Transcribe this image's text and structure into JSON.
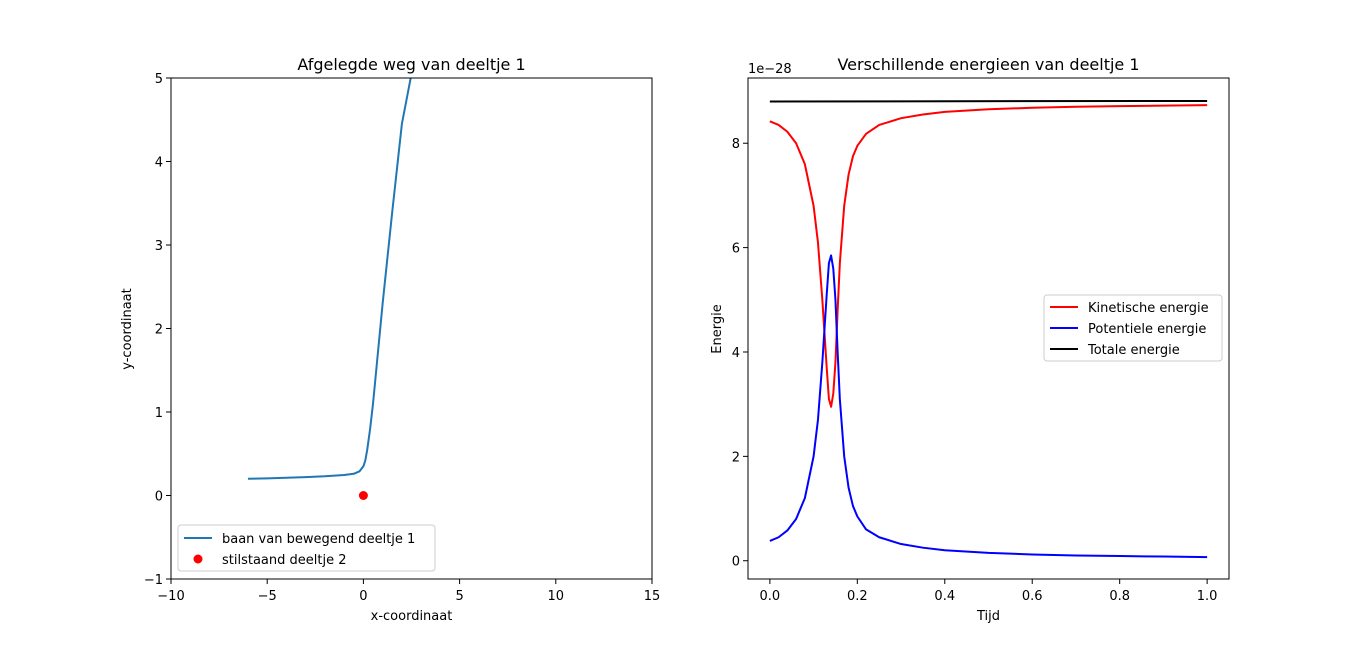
{
  "chart_data": [
    {
      "type": "line",
      "title": "Afgelegde weg van deeltje 1",
      "xlabel": "x-coordinaat",
      "ylabel": "y-coordinaat",
      "xlim": [
        -10,
        15
      ],
      "ylim": [
        -1,
        5
      ],
      "xticks": [
        -10,
        -5,
        0,
        5,
        10,
        15
      ],
      "xtick_labels": [
        "−10",
        "−5",
        "0",
        "5",
        "10",
        "15"
      ],
      "yticks": [
        -1,
        0,
        1,
        2,
        3,
        4,
        5
      ],
      "ytick_labels": [
        "−1",
        "0",
        "1",
        "2",
        "3",
        "4",
        "5"
      ],
      "grid": false,
      "legend_position": "lower-left",
      "series": [
        {
          "name": "baan van bewegend deeltje 1",
          "kind": "line",
          "color": "#1f77b4",
          "x": [
            -6.0,
            -5.0,
            -4.0,
            -3.0,
            -2.0,
            -1.0,
            -0.5,
            -0.2,
            0.0,
            0.1,
            0.2,
            0.35,
            0.5,
            0.75,
            1.0,
            1.5,
            2.0,
            2.5
          ],
          "y": [
            0.2,
            0.205,
            0.212,
            0.22,
            0.23,
            0.245,
            0.26,
            0.29,
            0.35,
            0.42,
            0.55,
            0.8,
            1.1,
            1.7,
            2.3,
            3.4,
            4.45,
            5.05
          ]
        },
        {
          "name": "stilstaand deeltje 2",
          "kind": "scatter",
          "color": "#ff0000",
          "x": [
            0
          ],
          "y": [
            0
          ]
        }
      ]
    },
    {
      "type": "line",
      "title": "Verschillende energieen van deeltje 1",
      "xlabel": "Tijd",
      "ylabel": "Energie",
      "offset_label": "1e−28",
      "xlim": [
        -0.05,
        1.05
      ],
      "ylim": [
        -0.35,
        9.25
      ],
      "xticks": [
        0.0,
        0.2,
        0.4,
        0.6,
        0.8,
        1.0
      ],
      "xtick_labels": [
        "0.0",
        "0.2",
        "0.4",
        "0.6",
        "0.8",
        "1.0"
      ],
      "yticks": [
        0,
        2,
        4,
        6,
        8
      ],
      "ytick_labels": [
        "0",
        "2",
        "4",
        "6",
        "8"
      ],
      "grid": false,
      "legend_position": "center-right",
      "series": [
        {
          "name": "Kinetische energie",
          "color": "#ff0000",
          "x": [
            0.0,
            0.02,
            0.04,
            0.06,
            0.08,
            0.1,
            0.11,
            0.12,
            0.13,
            0.135,
            0.14,
            0.145,
            0.15,
            0.155,
            0.16,
            0.17,
            0.18,
            0.19,
            0.2,
            0.22,
            0.25,
            0.3,
            0.35,
            0.4,
            0.5,
            0.6,
            0.7,
            0.8,
            0.9,
            1.0
          ],
          "y": [
            8.42,
            8.35,
            8.22,
            8.0,
            7.6,
            6.8,
            6.1,
            5.0,
            3.7,
            3.1,
            2.95,
            3.2,
            3.8,
            4.8,
            5.7,
            6.8,
            7.4,
            7.75,
            7.95,
            8.18,
            8.35,
            8.48,
            8.55,
            8.6,
            8.65,
            8.68,
            8.7,
            8.71,
            8.72,
            8.73
          ]
        },
        {
          "name": "Potentiele energie",
          "color": "#0000ff",
          "x": [
            0.0,
            0.02,
            0.04,
            0.06,
            0.08,
            0.1,
            0.11,
            0.12,
            0.13,
            0.135,
            0.14,
            0.145,
            0.15,
            0.155,
            0.16,
            0.17,
            0.18,
            0.19,
            0.2,
            0.22,
            0.25,
            0.3,
            0.35,
            0.4,
            0.5,
            0.6,
            0.7,
            0.8,
            0.9,
            1.0
          ],
          "y": [
            0.38,
            0.45,
            0.58,
            0.8,
            1.2,
            2.0,
            2.7,
            3.8,
            5.1,
            5.7,
            5.85,
            5.6,
            5.0,
            4.0,
            3.1,
            2.0,
            1.4,
            1.05,
            0.85,
            0.6,
            0.45,
            0.32,
            0.25,
            0.2,
            0.15,
            0.12,
            0.1,
            0.09,
            0.08,
            0.07
          ]
        },
        {
          "name": "Totale energie",
          "color": "#000000",
          "x": [
            0.0,
            1.0
          ],
          "y": [
            8.8,
            8.81
          ]
        }
      ]
    }
  ]
}
